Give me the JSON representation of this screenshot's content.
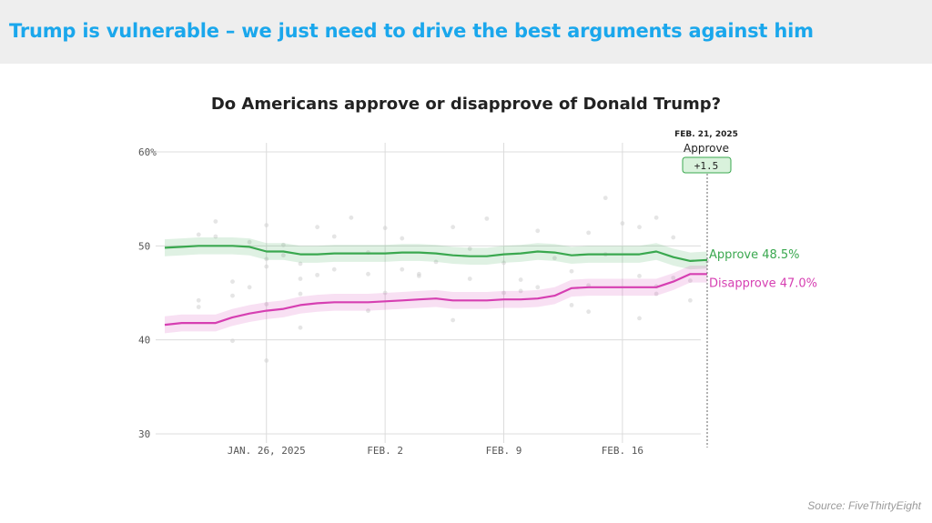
{
  "banner": {
    "title": "Trump is vulnerable – we just need to drive the best arguments against him"
  },
  "source": "Source: FiveThirtyEight",
  "colors": {
    "banner_bg": "#eeeeee",
    "banner_text": "#1aa7ec",
    "approve": "#3aa84f",
    "disapprove": "#d63fb2"
  },
  "chart_data": {
    "type": "line",
    "title": "Do Americans approve or disapprove of Donald Trump?",
    "x_start": "2025-01-20",
    "x_end": "2025-02-21",
    "x_ticks": [
      {
        "date": "2025-01-26",
        "label": "JAN. 26, 2025"
      },
      {
        "date": "2025-02-02",
        "label": "FEB. 2"
      },
      {
        "date": "2025-02-09",
        "label": "FEB. 9"
      },
      {
        "date": "2025-02-16",
        "label": "FEB. 16"
      }
    ],
    "y_ticks": [
      {
        "value": 60,
        "label": "60%"
      },
      {
        "value": 50,
        "label": "50"
      },
      {
        "value": 40,
        "label": "40"
      },
      {
        "value": 30,
        "label": "30"
      }
    ],
    "ylim": [
      30,
      60
    ],
    "grid": true,
    "dates": [
      "2025-01-20",
      "2025-01-21",
      "2025-01-22",
      "2025-01-23",
      "2025-01-24",
      "2025-01-25",
      "2025-01-26",
      "2025-01-27",
      "2025-01-28",
      "2025-01-29",
      "2025-01-30",
      "2025-01-31",
      "2025-02-01",
      "2025-02-02",
      "2025-02-03",
      "2025-02-04",
      "2025-02-05",
      "2025-02-06",
      "2025-02-07",
      "2025-02-08",
      "2025-02-09",
      "2025-02-10",
      "2025-02-11",
      "2025-02-12",
      "2025-02-13",
      "2025-02-14",
      "2025-02-15",
      "2025-02-16",
      "2025-02-17",
      "2025-02-18",
      "2025-02-19",
      "2025-02-20",
      "2025-02-21"
    ],
    "series": [
      {
        "name": "Approve",
        "values": [
          49.8,
          49.9,
          50.0,
          50.0,
          50.0,
          49.9,
          49.4,
          49.4,
          49.1,
          49.1,
          49.2,
          49.2,
          49.2,
          49.2,
          49.3,
          49.3,
          49.2,
          49.0,
          48.9,
          48.9,
          49.1,
          49.2,
          49.4,
          49.3,
          49.0,
          49.1,
          49.1,
          49.1,
          49.1,
          49.4,
          48.8,
          48.4,
          48.5
        ]
      },
      {
        "name": "Disapprove",
        "values": [
          41.6,
          41.8,
          41.8,
          41.8,
          42.4,
          42.8,
          43.1,
          43.3,
          43.7,
          43.9,
          44.0,
          44.0,
          44.0,
          44.1,
          44.2,
          44.3,
          44.4,
          44.2,
          44.2,
          44.2,
          44.3,
          44.3,
          44.4,
          44.7,
          45.5,
          45.6,
          45.6,
          45.6,
          45.6,
          45.6,
          46.2,
          47.0,
          47.0
        ]
      }
    ],
    "end_labels": {
      "approve": "Approve 48.5%",
      "disapprove": "Disapprove 47.0%"
    },
    "callout": {
      "date": "FEB. 21, 2025",
      "label": "Approve",
      "value": "+1.5"
    },
    "scatter_points": [
      [
        2,
        43.5
      ],
      [
        2,
        44.2
      ],
      [
        3,
        51.0
      ],
      [
        3,
        52.6
      ],
      [
        4,
        39.9
      ],
      [
        4,
        46.2
      ],
      [
        4,
        44.7
      ],
      [
        5,
        50.4
      ],
      [
        5,
        45.6
      ],
      [
        6,
        43.8
      ],
      [
        6,
        48.6
      ],
      [
        6,
        52.2
      ],
      [
        6,
        47.8
      ],
      [
        6,
        37.8
      ],
      [
        7,
        49.0
      ],
      [
        8,
        46.5
      ],
      [
        8,
        48.1
      ],
      [
        8,
        44.9
      ],
      [
        8,
        41.3
      ],
      [
        9,
        52.0
      ],
      [
        9,
        46.9
      ],
      [
        10,
        51.0
      ],
      [
        10,
        47.5
      ],
      [
        11,
        53.0
      ],
      [
        12,
        49.3
      ],
      [
        12,
        43.1
      ],
      [
        13,
        45.0
      ],
      [
        13,
        51.9
      ],
      [
        14,
        47.5
      ],
      [
        14,
        50.8
      ],
      [
        15,
        47.0
      ],
      [
        15,
        46.8
      ],
      [
        16,
        48.3
      ],
      [
        17,
        52.0
      ],
      [
        17,
        42.1
      ],
      [
        18,
        46.5
      ],
      [
        18,
        49.7
      ],
      [
        19,
        52.9
      ],
      [
        20,
        48.2
      ],
      [
        21,
        45.2
      ],
      [
        22,
        51.6
      ],
      [
        22,
        45.6
      ],
      [
        23,
        48.7
      ],
      [
        24,
        47.3
      ],
      [
        25,
        51.4
      ],
      [
        25,
        45.8
      ],
      [
        26,
        49.1
      ],
      [
        26,
        55.1
      ],
      [
        27,
        52.4
      ],
      [
        28,
        52.0
      ],
      [
        28,
        46.8
      ],
      [
        29,
        45.7
      ],
      [
        30,
        46.6
      ],
      [
        30,
        50.9
      ],
      [
        31,
        44.2
      ],
      [
        32,
        48.4
      ],
      [
        2,
        51.2
      ],
      [
        7,
        50.1
      ],
      [
        12,
        47.0
      ],
      [
        20,
        45.0
      ],
      [
        21,
        46.4
      ],
      [
        24,
        43.7
      ],
      [
        25,
        43.0
      ],
      [
        28,
        42.3
      ],
      [
        29,
        53.0
      ],
      [
        29,
        44.9
      ],
      [
        31,
        46.3
      ]
    ]
  }
}
